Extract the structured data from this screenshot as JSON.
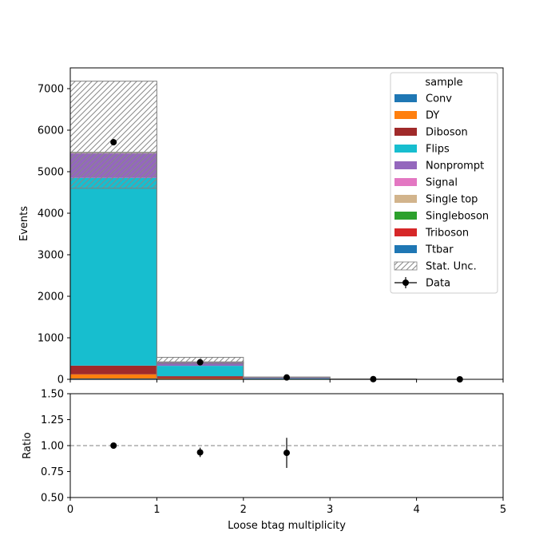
{
  "chart_data": [
    {
      "type": "bar",
      "stacked": true,
      "bin_edges": [
        0,
        1,
        2,
        3,
        4,
        5
      ],
      "xlim": [
        0,
        5
      ],
      "ylim": [
        0,
        7500
      ],
      "yticks": [
        0,
        1000,
        2000,
        3000,
        4000,
        5000,
        6000,
        7000
      ],
      "ylabel": "Events",
      "legend": {
        "title": "sample",
        "placement": "top-right",
        "entries": [
          "Conv",
          "DY",
          "Diboson",
          "Flips",
          "Nonprompt",
          "Signal",
          "Single top",
          "Singleboson",
          "Triboson",
          "Ttbar",
          "Stat. Unc.",
          "Data"
        ]
      },
      "series": [
        {
          "name": "Conv",
          "color": "#1f77b4",
          "values": [
            20,
            5,
            0,
            0,
            0
          ]
        },
        {
          "name": "DY",
          "color": "#ff7f0e",
          "values": [
            100,
            20,
            2,
            0,
            0
          ]
        },
        {
          "name": "Diboson",
          "color": "#a02a2a",
          "values": [
            210,
            50,
            5,
            0,
            0
          ]
        },
        {
          "name": "Flips",
          "color": "#17becf",
          "values": [
            4520,
            250,
            15,
            2,
            0
          ]
        },
        {
          "name": "Nonprompt",
          "color": "#9467bd",
          "values": [
            590,
            80,
            20,
            3,
            0
          ]
        },
        {
          "name": "Signal",
          "color": "#e377c2",
          "values": [
            5,
            2,
            1,
            0,
            0
          ]
        },
        {
          "name": "Single top",
          "color": "#d2b48c",
          "values": [
            5,
            2,
            1,
            0,
            0
          ]
        },
        {
          "name": "Singleboson",
          "color": "#2ca02c",
          "values": [
            5,
            2,
            1,
            0,
            0
          ]
        },
        {
          "name": "Triboson",
          "color": "#d62728",
          "values": [
            5,
            2,
            0,
            0,
            0
          ]
        },
        {
          "name": "Ttbar",
          "color": "#1f77b4",
          "values": [
            5,
            5,
            5,
            1,
            0
          ]
        }
      ],
      "stat_unc": {
        "name": "Stat. Unc.",
        "lower": [
          4600,
          380,
          45,
          5,
          0
        ],
        "upper": [
          7180,
          530,
          55,
          8,
          0
        ]
      },
      "data": {
        "name": "Data",
        "x": [
          0.5,
          1.5,
          2.5,
          3.5,
          4.5
        ],
        "y": [
          5710,
          410,
          45,
          5,
          0
        ],
        "yerr": [
          76,
          20,
          7,
          2,
          0
        ]
      }
    },
    {
      "type": "scatter",
      "xlabel": "Loose btag multiplicity",
      "ylabel": "Ratio",
      "xlim": [
        0,
        5
      ],
      "ylim": [
        0.5,
        1.5
      ],
      "xticks": [
        0,
        1,
        2,
        3,
        4,
        5
      ],
      "yticks": [
        "0.50",
        "0.75",
        "1.00",
        "1.25",
        "1.50"
      ],
      "reference_line": 1.0,
      "x": [
        0.5,
        1.5,
        2.5
      ],
      "y": [
        1.0,
        0.935,
        0.93
      ],
      "yerr": [
        0.013,
        0.045,
        0.145
      ]
    }
  ]
}
